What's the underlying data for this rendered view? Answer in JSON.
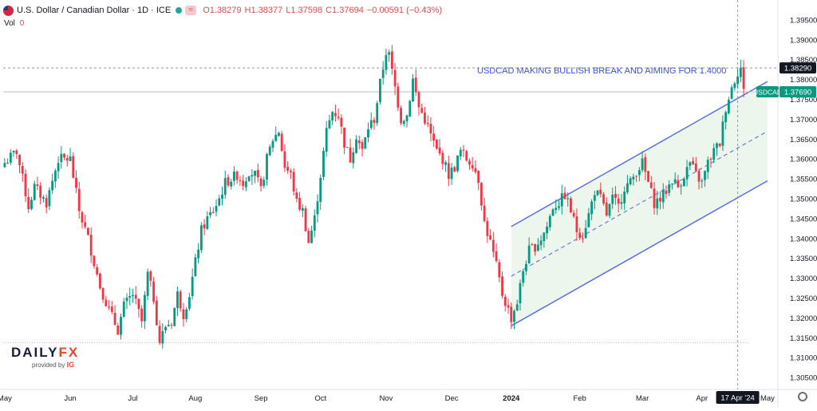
{
  "header": {
    "symbol_title": "U.S. Dollar / Canadian Dollar · 1D · ICE",
    "open": "O1.38279",
    "high": "H1.38377",
    "low": "L1.37598",
    "close": "C1.37694",
    "change": "−0.00591 (−0.43%)",
    "vol_label": "Vol",
    "vol_value": "0"
  },
  "icons": {
    "flag": "us-canada-flag-icon",
    "status": "market-status-dot-icon",
    "compare": "compare-symbol-icon",
    "settings": "settings-gear-icon"
  },
  "colors": {
    "up": "#089981",
    "down": "#f23645",
    "channel": "#5b6ee1",
    "channel_fill": "#e6f3e6",
    "annotation": "#3d52d5",
    "last_price_bg": "#089981",
    "ref_price_bg": "#131722"
  },
  "logo": {
    "brand_a": "DAILY",
    "brand_b": "FX",
    "provided_by": "provided by",
    "ig": "IG"
  },
  "chart_data": {
    "type": "candlestick",
    "symbol": "USDCAD",
    "annotation": "USDCAD MAKING BULLISH BREAK AND AIMING FOR 1.4000",
    "y_ticks": [
      1.395,
      1.39,
      1.385,
      1.38,
      1.375,
      1.37,
      1.365,
      1.36,
      1.355,
      1.35,
      1.345,
      1.34,
      1.335,
      1.33,
      1.325,
      1.32,
      1.315,
      1.31,
      1.305
    ],
    "y_tick_labels": [
      "1.39500",
      "1.39000",
      "1.38500",
      "1.38000",
      "1.37500",
      "1.37000",
      "1.36500",
      "1.36000",
      "1.35500",
      "1.35000",
      "1.34500",
      "1.34000",
      "1.33500",
      "1.33000",
      "1.32500",
      "1.32000",
      "1.31500",
      "1.31000",
      "1.30500"
    ],
    "ylim": [
      1.302,
      1.398
    ],
    "x_ticks": [
      {
        "label": "May",
        "bar": 0,
        "bold": false
      },
      {
        "label": "Jun",
        "bar": 22,
        "bold": false
      },
      {
        "label": "Jul",
        "bar": 43,
        "bold": false
      },
      {
        "label": "Aug",
        "bar": 64,
        "bold": false
      },
      {
        "label": "Sep",
        "bar": 86,
        "bold": false
      },
      {
        "label": "Oct",
        "bar": 106,
        "bold": false
      },
      {
        "label": "Nov",
        "bar": 128,
        "bold": false
      },
      {
        "label": "Dec",
        "bar": 150,
        "bold": false
      },
      {
        "label": "2024",
        "bar": 170,
        "bold": true
      },
      {
        "label": "Feb",
        "bar": 193,
        "bold": false
      },
      {
        "label": "Mar",
        "bar": 214,
        "bold": false
      },
      {
        "label": "Apr",
        "bar": 234,
        "bold": false
      },
      {
        "label": "May",
        "bar": 256,
        "bold": false
      }
    ],
    "crosshair_date": "17 Apr '24",
    "crosshair_bar": 246,
    "price_tags": [
      {
        "label": "1.38290",
        "value": 1.3829,
        "kind": "ref"
      },
      {
        "label": "USDCAD",
        "value": 1.3769,
        "kind": "symbol"
      },
      {
        "label": "1.37690",
        "value": 1.3769,
        "kind": "last"
      }
    ],
    "dashed_level": 1.3829,
    "bottom_level": 1.3138,
    "channel": {
      "start_bar": 170,
      "end_bar": 256,
      "upper": [
        1.343,
        1.3795
      ],
      "middle": [
        1.3305,
        1.367
      ],
      "lower": [
        1.318,
        1.3545
      ]
    },
    "close_waypoints": [
      [
        0,
        1.359
      ],
      [
        4,
        1.362
      ],
      [
        8,
        1.348
      ],
      [
        10,
        1.353
      ],
      [
        14,
        1.349
      ],
      [
        18,
        1.36
      ],
      [
        22,
        1.36
      ],
      [
        25,
        1.347
      ],
      [
        28,
        1.34
      ],
      [
        32,
        1.328
      ],
      [
        35,
        1.322
      ],
      [
        38,
        1.317
      ],
      [
        40,
        1.323
      ],
      [
        43,
        1.326
      ],
      [
        46,
        1.319
      ],
      [
        48,
        1.331
      ],
      [
        50,
        1.325
      ],
      [
        52,
        1.314
      ],
      [
        54,
        1.318
      ],
      [
        56,
        1.319
      ],
      [
        58,
        1.326
      ],
      [
        60,
        1.321
      ],
      [
        62,
        1.326
      ],
      [
        64,
        1.334
      ],
      [
        66,
        1.342
      ],
      [
        68,
        1.345
      ],
      [
        70,
        1.347
      ],
      [
        72,
        1.35
      ],
      [
        74,
        1.354
      ],
      [
        78,
        1.356
      ],
      [
        80,
        1.354
      ],
      [
        82,
        1.357
      ],
      [
        84,
        1.356
      ],
      [
        86,
        1.352
      ],
      [
        88,
        1.36
      ],
      [
        90,
        1.365
      ],
      [
        92,
        1.367
      ],
      [
        94,
        1.358
      ],
      [
        96,
        1.356
      ],
      [
        98,
        1.349
      ],
      [
        100,
        1.347
      ],
      [
        102,
        1.339
      ],
      [
        104,
        1.345
      ],
      [
        106,
        1.356
      ],
      [
        108,
        1.367
      ],
      [
        110,
        1.372
      ],
      [
        112,
        1.371
      ],
      [
        114,
        1.364
      ],
      [
        116,
        1.36
      ],
      [
        118,
        1.366
      ],
      [
        120,
        1.362
      ],
      [
        122,
        1.368
      ],
      [
        124,
        1.37
      ],
      [
        126,
        1.379
      ],
      [
        128,
        1.387
      ],
      [
        129,
        1.386
      ],
      [
        131,
        1.378
      ],
      [
        133,
        1.37
      ],
      [
        135,
        1.371
      ],
      [
        137,
        1.38
      ],
      [
        139,
        1.373
      ],
      [
        141,
        1.37
      ],
      [
        143,
        1.366
      ],
      [
        145,
        1.362
      ],
      [
        147,
        1.36
      ],
      [
        149,
        1.356
      ],
      [
        151,
        1.358
      ],
      [
        153,
        1.362
      ],
      [
        155,
        1.36
      ],
      [
        157,
        1.359
      ],
      [
        159,
        1.355
      ],
      [
        161,
        1.344
      ],
      [
        163,
        1.339
      ],
      [
        165,
        1.333
      ],
      [
        167,
        1.326
      ],
      [
        169,
        1.322
      ],
      [
        170,
        1.32
      ],
      [
        172,
        1.324
      ],
      [
        174,
        1.332
      ],
      [
        176,
        1.337
      ],
      [
        178,
        1.338
      ],
      [
        180,
        1.34
      ],
      [
        182,
        1.343
      ],
      [
        184,
        1.348
      ],
      [
        186,
        1.349
      ],
      [
        188,
        1.351
      ],
      [
        190,
        1.347
      ],
      [
        192,
        1.342
      ],
      [
        194,
        1.341
      ],
      [
        196,
        1.346
      ],
      [
        198,
        1.352
      ],
      [
        200,
        1.35
      ],
      [
        202,
        1.346
      ],
      [
        204,
        1.35
      ],
      [
        206,
        1.348
      ],
      [
        208,
        1.353
      ],
      [
        210,
        1.354
      ],
      [
        212,
        1.357
      ],
      [
        214,
        1.359
      ],
      [
        216,
        1.354
      ],
      [
        218,
        1.349
      ],
      [
        220,
        1.35
      ],
      [
        222,
        1.352
      ],
      [
        224,
        1.355
      ],
      [
        226,
        1.353
      ],
      [
        228,
        1.356
      ],
      [
        230,
        1.359
      ],
      [
        232,
        1.356
      ],
      [
        234,
        1.354
      ],
      [
        236,
        1.359
      ],
      [
        238,
        1.362
      ],
      [
        240,
        1.364
      ],
      [
        242,
        1.373
      ],
      [
        244,
        1.378
      ],
      [
        246,
        1.382
      ],
      [
        247,
        1.3829
      ],
      [
        248,
        1.3769
      ]
    ]
  }
}
